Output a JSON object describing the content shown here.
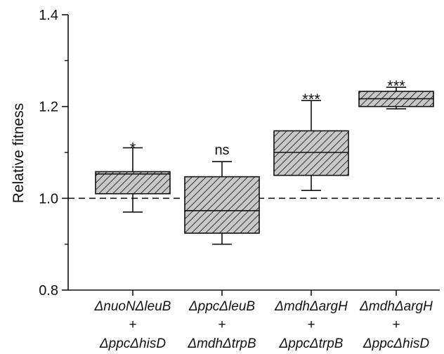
{
  "chart_data": {
    "type": "boxplot",
    "title": "",
    "ylabel": "Relative fitness",
    "xlabel": "",
    "ylim": [
      0.8,
      1.4
    ],
    "yticks": [
      "0.8",
      "1.0",
      "1.2",
      "1.4"
    ],
    "reference_line": 1.0,
    "grid": false,
    "box_fill": "#c8c8c8",
    "hatch_color": "#333333",
    "categories": [
      {
        "label_top": "ΔnuoNΔleuB",
        "label_plus": "+",
        "label_bottom": "ΔppcΔhisD",
        "significance": "*",
        "whisker_low": 0.97,
        "q1": 1.01,
        "median": 1.053,
        "q3": 1.058,
        "whisker_high": 1.11
      },
      {
        "label_top": "ΔppcΔleuB",
        "label_plus": "+",
        "label_bottom": "ΔmdhΔtrpB",
        "significance": "ns",
        "whisker_low": 0.9,
        "q1": 0.924,
        "median": 0.973,
        "q3": 1.047,
        "whisker_high": 1.08
      },
      {
        "label_top": "ΔmdhΔargH",
        "label_plus": "+",
        "label_bottom": "ΔppcΔtrpB",
        "significance": "***",
        "whisker_low": 1.017,
        "q1": 1.05,
        "median": 1.1,
        "q3": 1.147,
        "whisker_high": 1.213
      },
      {
        "label_top": "ΔmdhΔargH",
        "label_plus": "+",
        "label_bottom": "ΔppcΔhisD",
        "significance": "***",
        "whisker_low": 1.195,
        "q1": 1.2,
        "median": 1.217,
        "q3": 1.233,
        "whisker_high": 1.242
      }
    ]
  }
}
